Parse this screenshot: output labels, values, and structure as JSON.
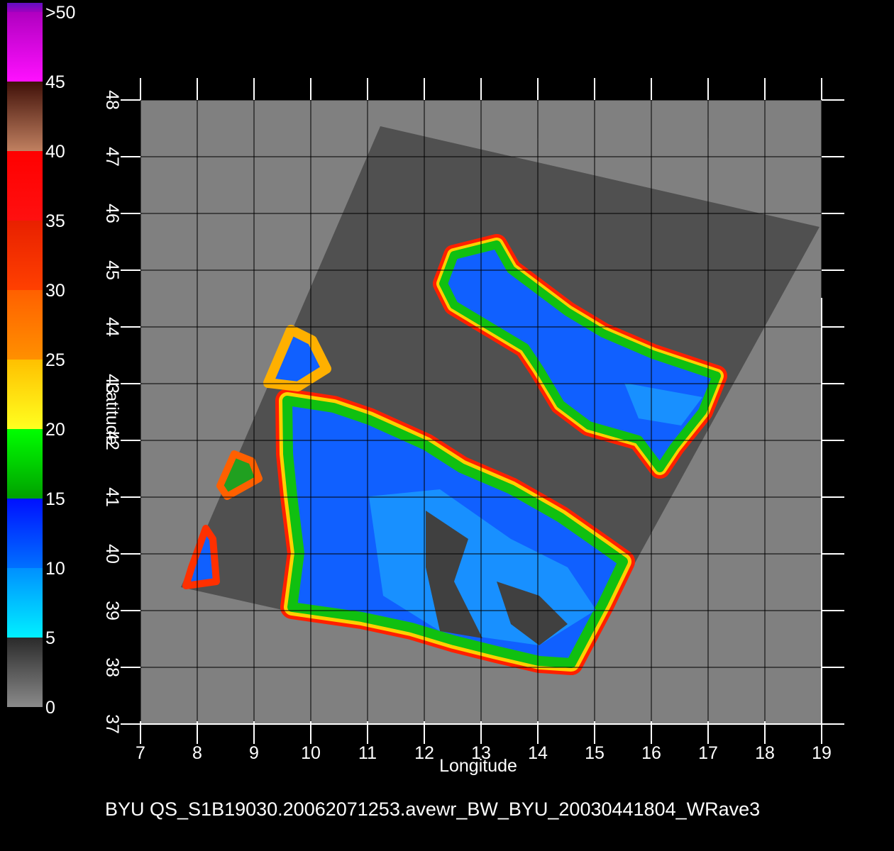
{
  "title": "BYU  QS_S1B19030.20062071253.avewr_BW_BYU_20030441804_WRave3",
  "colorbar": {
    "ticks": [
      0,
      5,
      10,
      15,
      20,
      25,
      30,
      35,
      40,
      45,
      {
        "value": 50,
        "label": ">50"
      }
    ],
    "lim": [
      0,
      50
    ],
    "colors": [
      [
        "#8a8a8a",
        "#2a2a2a"
      ],
      [
        "#00f0ff",
        "#0090ff"
      ],
      [
        "#0070ff",
        "#0010ff"
      ],
      [
        "#00a000",
        "#00ff00"
      ],
      [
        "#ffff20",
        "#ffc000"
      ],
      [
        "#ff9000",
        "#ff6000"
      ],
      [
        "#ff4000",
        "#e82000"
      ],
      [
        "#ff1010",
        "#ff0000"
      ],
      [
        "#c08060",
        "#401008"
      ],
      [
        "#ff10ff",
        "#b000c0"
      ],
      [
        "#a000c0",
        "#6010c0"
      ]
    ]
  },
  "map": {
    "xlabel": "Longitude",
    "ylabel": "Latitude",
    "xlim": [
      7,
      19
    ],
    "ylim": [
      37,
      48
    ],
    "xticks": [
      7,
      8,
      9,
      10,
      11,
      12,
      13,
      14,
      15,
      16,
      17,
      18,
      19
    ],
    "yticks": [
      37,
      38,
      39,
      40,
      41,
      42,
      43,
      44,
      45,
      46,
      47,
      48
    ],
    "background": "#808080",
    "grid_color": "#000000",
    "axis_color": "#ffffff"
  }
}
